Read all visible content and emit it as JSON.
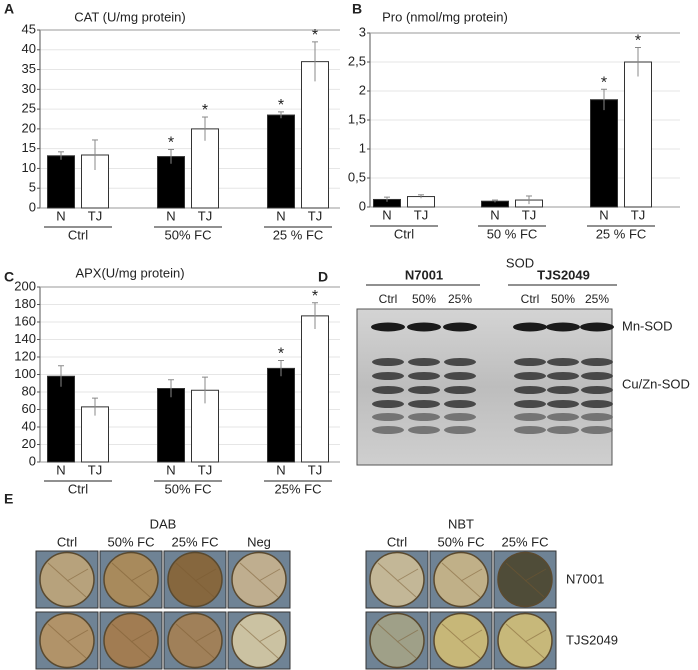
{
  "chart_data": [
    {
      "type": "bar",
      "panel": "A",
      "title": "CAT (U/mg protein)",
      "categories": [
        "Ctrl",
        "50% FC",
        "25 % FC"
      ],
      "series": [
        {
          "name": "N",
          "color": "#000000",
          "values": [
            13.2,
            13,
            23.5
          ],
          "errors": [
            1,
            1.8,
            0.8
          ],
          "significant": [
            false,
            true,
            true
          ]
        },
        {
          "name": "TJ",
          "color": "#ffffff",
          "values": [
            13.4,
            20,
            37
          ],
          "errors": [
            3.8,
            3,
            5
          ],
          "significant": [
            false,
            true,
            true
          ]
        }
      ],
      "significance_marker": "*",
      "ylim": [
        0,
        45
      ],
      "yticks": [
        0,
        5,
        10,
        15,
        20,
        25,
        30,
        35,
        40,
        45
      ],
      "grid": true
    },
    {
      "type": "bar",
      "panel": "B",
      "title": "Pro (nmol/mg protein)",
      "categories": [
        "Ctrl",
        "50 % FC",
        "25 % FC"
      ],
      "series": [
        {
          "name": "N",
          "color": "#000000",
          "values": [
            0.13,
            0.1,
            1.85
          ],
          "errors": [
            0.04,
            0.02,
            0.18
          ],
          "significant": [
            false,
            false,
            true
          ]
        },
        {
          "name": "TJ",
          "color": "#ffffff",
          "values": [
            0.18,
            0.12,
            2.5
          ],
          "errors": [
            0.03,
            0.07,
            0.25
          ],
          "significant": [
            false,
            false,
            true
          ]
        }
      ],
      "significance_marker": "*",
      "ylim": [
        0,
        3
      ],
      "yticks": [
        0,
        {
          "value": 0.5,
          "label": "0,5"
        },
        1,
        {
          "value": 1.5,
          "label": "1,5"
        },
        2,
        {
          "value": 2.5,
          "label": "2,5"
        },
        3
      ],
      "grid": true
    },
    {
      "type": "bar",
      "panel": "C",
      "title": "APX(U/mg protein)",
      "categories": [
        "Ctrl",
        "50% FC",
        "25% FC"
      ],
      "series": [
        {
          "name": "N",
          "color": "#000000",
          "values": [
            98,
            84,
            107
          ],
          "errors": [
            12,
            10,
            9
          ],
          "significant": [
            false,
            false,
            true
          ]
        },
        {
          "name": "TJ",
          "color": "#ffffff",
          "values": [
            63,
            82,
            167
          ],
          "errors": [
            10,
            15,
            15
          ],
          "significant": [
            false,
            false,
            true
          ]
        }
      ],
      "significance_marker": "*",
      "ylim": [
        0,
        200
      ],
      "yticks": [
        0,
        20,
        40,
        60,
        80,
        100,
        120,
        140,
        160,
        180,
        200
      ],
      "grid": true
    }
  ],
  "gel": {
    "panel": "D",
    "title": "SOD",
    "groups": [
      {
        "name": "N7001",
        "lanes": [
          "Ctrl",
          "50%",
          "25%"
        ]
      },
      {
        "name": "TJS2049",
        "lanes": [
          "Ctrl",
          "50%",
          "25%"
        ]
      }
    ],
    "bands": [
      "Mn-SOD",
      "Cu/Zn-SOD"
    ]
  },
  "stain": {
    "panel": "E",
    "stains": [
      {
        "name": "DAB",
        "columns": [
          "Ctrl",
          "50% FC",
          "25% FC",
          "Neg"
        ]
      },
      {
        "name": "NBT",
        "columns": [
          "Ctrl",
          "50% FC",
          "25% FC"
        ]
      }
    ],
    "rows": [
      "N7001",
      "TJS2049"
    ]
  }
}
